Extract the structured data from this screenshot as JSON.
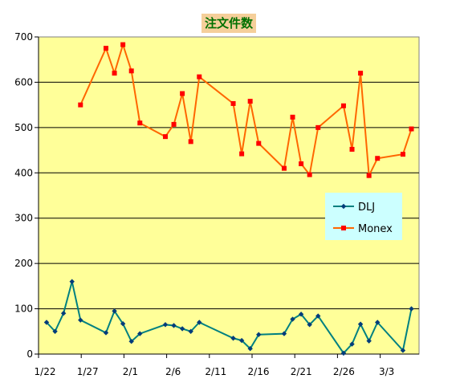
{
  "chart_data": {
    "type": "line",
    "title": "注文件数",
    "xlabel": "",
    "ylabel": "",
    "x_range": [
      "1/22",
      "3/7"
    ],
    "ylim": [
      0,
      700
    ],
    "y_ticks": [
      0,
      100,
      200,
      300,
      400,
      500,
      600,
      700
    ],
    "x_tick_labels": [
      "1/22",
      "1/27",
      "2/1",
      "2/6",
      "2/11",
      "2/16",
      "2/21",
      "2/26",
      "3/3"
    ],
    "x_tick_days": [
      0,
      5,
      10,
      15,
      20,
      25,
      30,
      35,
      40
    ],
    "grid": true,
    "legend_position": "right",
    "colors": {
      "plot_background": "#ffff99",
      "DLJ": "#008080",
      "DLJ_marker": "#003c7a",
      "Monex": "#ff6600",
      "Monex_marker": "#ff0000"
    },
    "series": [
      {
        "name": "DLJ",
        "days": [
          0,
          1,
          2,
          3,
          4,
          7,
          8,
          9,
          10,
          11,
          14,
          15,
          16,
          17,
          18,
          22,
          23,
          24,
          25,
          28,
          29,
          30,
          31,
          32,
          35,
          36,
          37,
          38,
          39,
          42,
          43
        ],
        "values": [
          70,
          50,
          90,
          160,
          75,
          47,
          95,
          67,
          28,
          45,
          65,
          63,
          56,
          50,
          70,
          35,
          30,
          12,
          43,
          45,
          77,
          88,
          65,
          84,
          2,
          22,
          66,
          29,
          70,
          8,
          100
        ]
      },
      {
        "name": "Monex",
        "days": [
          4,
          7,
          8,
          9,
          10,
          11,
          14,
          15,
          16,
          17,
          18,
          22,
          23,
          24,
          25,
          28,
          29,
          30,
          31,
          32,
          35,
          36,
          37,
          38,
          39,
          42,
          43
        ],
        "values": [
          550,
          675,
          620,
          683,
          625,
          510,
          480,
          507,
          575,
          469,
          612,
          553,
          442,
          558,
          465,
          410,
          523,
          420,
          396,
          500,
          548,
          452,
          620,
          394,
          432,
          441,
          497
        ]
      }
    ]
  }
}
